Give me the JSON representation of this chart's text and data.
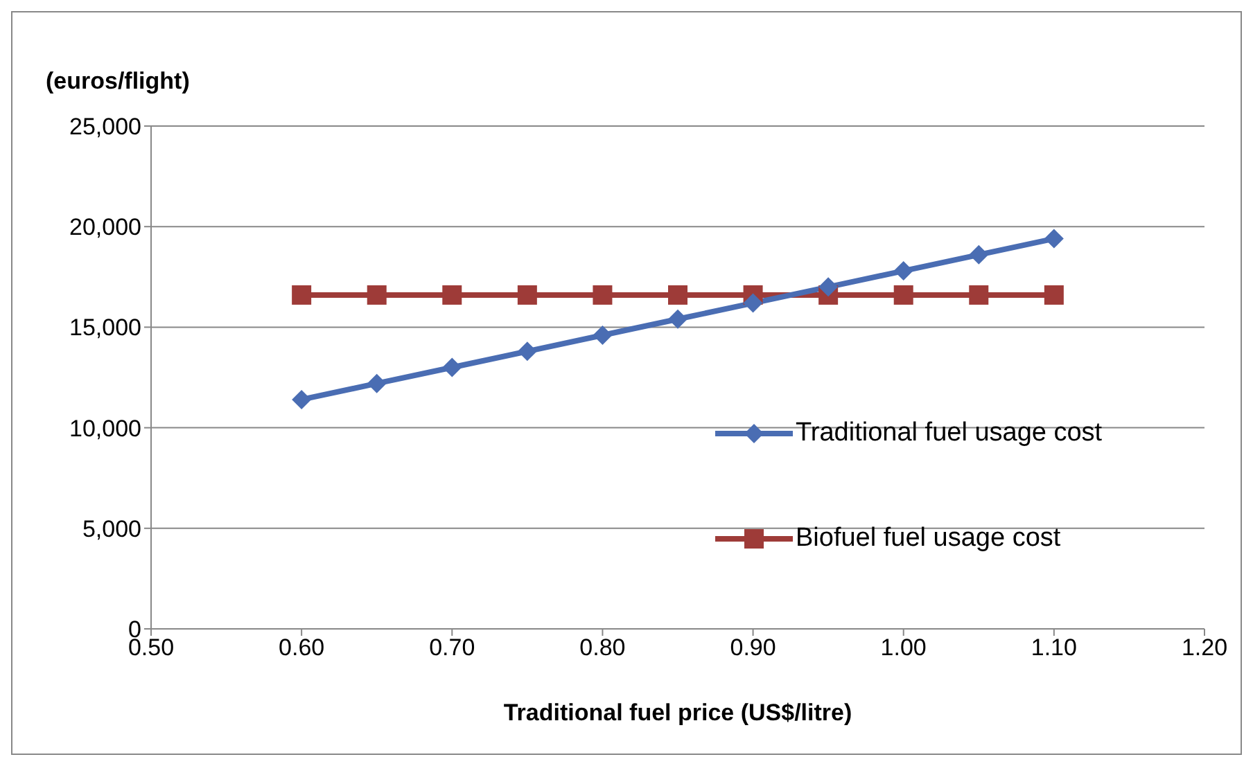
{
  "chart_data": {
    "type": "line",
    "ylabel": "(euros/flight)",
    "xlabel": "Traditional fuel price (US$/litre)",
    "x": [
      0.6,
      0.65,
      0.7,
      0.75,
      0.8,
      0.85,
      0.9,
      0.95,
      1.0,
      1.05,
      1.1
    ],
    "series": [
      {
        "name": "Traditional fuel usage cost",
        "color": "#4a6db3",
        "marker": "diamond",
        "values": [
          11400,
          12200,
          13000,
          13800,
          14600,
          15400,
          16200,
          17000,
          17800,
          18600,
          19400
        ]
      },
      {
        "name": "Biofuel fuel usage cost",
        "color": "#9e3b38",
        "marker": "square",
        "values": [
          16600,
          16600,
          16600,
          16600,
          16600,
          16600,
          16600,
          16600,
          16600,
          16600,
          16600
        ]
      }
    ],
    "xlim": [
      0.5,
      1.2
    ],
    "xticks": [
      {
        "value": 0.5,
        "label": "0.50"
      },
      {
        "value": 0.6,
        "label": "0.60"
      },
      {
        "value": 0.7,
        "label": "0.70"
      },
      {
        "value": 0.8,
        "label": "0.80"
      },
      {
        "value": 0.9,
        "label": "0.90"
      },
      {
        "value": 1.0,
        "label": "1.00"
      },
      {
        "value": 1.1,
        "label": "1.10"
      },
      {
        "value": 1.2,
        "label": "1.20"
      }
    ],
    "ylim": [
      0,
      25000
    ],
    "yticks": [
      0,
      {
        "value": 5000,
        "label": "5,000"
      },
      {
        "value": 10000,
        "label": "10,000"
      },
      {
        "value": 15000,
        "label": "15,000"
      },
      {
        "value": 20000,
        "label": "20,000"
      },
      {
        "value": 25000,
        "label": "25,000"
      }
    ],
    "grid": "y",
    "legend": "right",
    "line_style": "solid"
  }
}
